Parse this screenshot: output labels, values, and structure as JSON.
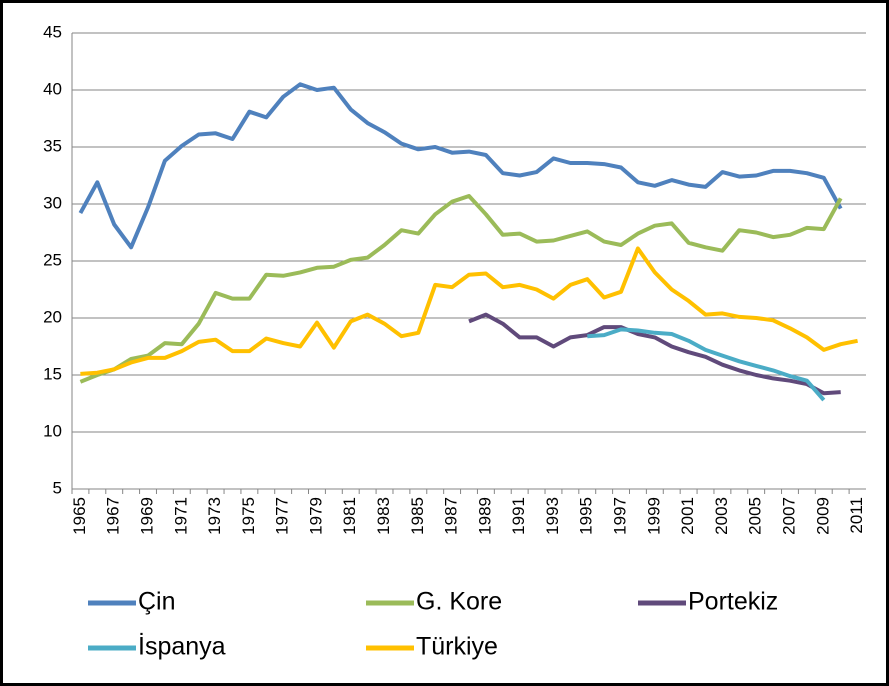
{
  "chart_data": {
    "type": "line",
    "categories": [
      "1965",
      null,
      "1967",
      null,
      "1969",
      null,
      "1971",
      null,
      "1973",
      null,
      "1975",
      null,
      "1977",
      null,
      "1979",
      null,
      "1981",
      null,
      "1983",
      null,
      "1985",
      null,
      "1987",
      null,
      "1989",
      null,
      "1991",
      null,
      "1993",
      null,
      "1995",
      null,
      "1997",
      null,
      "1999",
      null,
      "2001",
      null,
      "2003",
      null,
      "2005",
      null,
      "2007",
      null,
      "2009",
      null,
      "2011"
    ],
    "series": [
      {
        "name": "Çin",
        "color": "#4f81bd",
        "values": [
          29.2,
          31.9,
          28.2,
          26.2,
          29.7,
          33.8,
          35.1,
          36.1,
          36.2,
          35.7,
          38.1,
          37.6,
          39.4,
          40.5,
          40.0,
          40.2,
          38.3,
          37.1,
          36.3,
          35.3,
          34.8,
          35.0,
          34.5,
          34.6,
          34.3,
          32.7,
          32.5,
          32.8,
          34.0,
          33.6,
          33.6,
          33.5,
          33.2,
          31.9,
          31.6,
          32.1,
          31.7,
          31.5,
          32.8,
          32.4,
          32.5,
          32.9,
          32.9,
          32.7,
          32.3,
          29.6,
          null
        ]
      },
      {
        "name": "G. Kore",
        "color": "#9bbb59",
        "values": [
          14.4,
          15.0,
          15.5,
          16.4,
          16.7,
          17.8,
          17.7,
          19.5,
          22.2,
          21.7,
          21.7,
          23.8,
          23.7,
          24.0,
          24.4,
          24.5,
          25.1,
          25.3,
          26.4,
          27.7,
          27.4,
          29.1,
          30.2,
          30.7,
          29.1,
          27.3,
          27.4,
          26.7,
          26.8,
          27.2,
          27.6,
          26.7,
          26.4,
          27.4,
          28.1,
          28.3,
          26.6,
          26.2,
          25.9,
          27.7,
          27.5,
          27.1,
          27.3,
          27.9,
          27.8,
          30.5,
          null
        ]
      },
      {
        "name": "Portekiz",
        "color": "#604a7b",
        "values": [
          null,
          null,
          null,
          null,
          null,
          null,
          null,
          null,
          null,
          null,
          null,
          null,
          null,
          null,
          null,
          null,
          null,
          null,
          null,
          null,
          null,
          null,
          null,
          19.7,
          20.3,
          19.5,
          18.3,
          18.3,
          17.5,
          18.3,
          18.5,
          19.2,
          19.2,
          18.6,
          18.3,
          17.5,
          17.0,
          16.6,
          15.9,
          15.4,
          15.0,
          14.7,
          14.5,
          14.2,
          13.4,
          13.5,
          null
        ]
      },
      {
        "name": "İspanya",
        "color": "#4bacc6",
        "values": [
          null,
          null,
          null,
          null,
          null,
          null,
          null,
          null,
          null,
          null,
          null,
          null,
          null,
          null,
          null,
          null,
          null,
          null,
          null,
          null,
          null,
          null,
          null,
          null,
          null,
          null,
          null,
          null,
          null,
          null,
          18.4,
          18.5,
          19.0,
          18.9,
          18.7,
          18.6,
          18.0,
          17.2,
          16.7,
          16.2,
          15.8,
          15.4,
          14.9,
          14.5,
          12.8,
          null,
          null
        ]
      },
      {
        "name": "Türkiye",
        "color": "#ffc000",
        "values": [
          15.1,
          15.2,
          15.5,
          16.1,
          16.5,
          16.5,
          17.1,
          17.9,
          18.1,
          17.1,
          17.1,
          18.2,
          17.8,
          17.5,
          19.6,
          17.4,
          19.7,
          20.3,
          19.5,
          18.4,
          18.7,
          22.9,
          22.7,
          23.8,
          23.9,
          22.7,
          22.9,
          22.5,
          21.7,
          22.9,
          23.4,
          21.8,
          22.3,
          26.1,
          24.0,
          22.5,
          21.5,
          20.3,
          20.4,
          20.1,
          20.0,
          19.8,
          19.1,
          18.3,
          17.2,
          17.7,
          18.0
        ]
      }
    ],
    "ylim": [
      5,
      45
    ],
    "yticks": [
      5,
      10,
      15,
      20,
      25,
      30,
      35,
      40,
      45
    ],
    "grid": true,
    "legend": "bottom"
  }
}
